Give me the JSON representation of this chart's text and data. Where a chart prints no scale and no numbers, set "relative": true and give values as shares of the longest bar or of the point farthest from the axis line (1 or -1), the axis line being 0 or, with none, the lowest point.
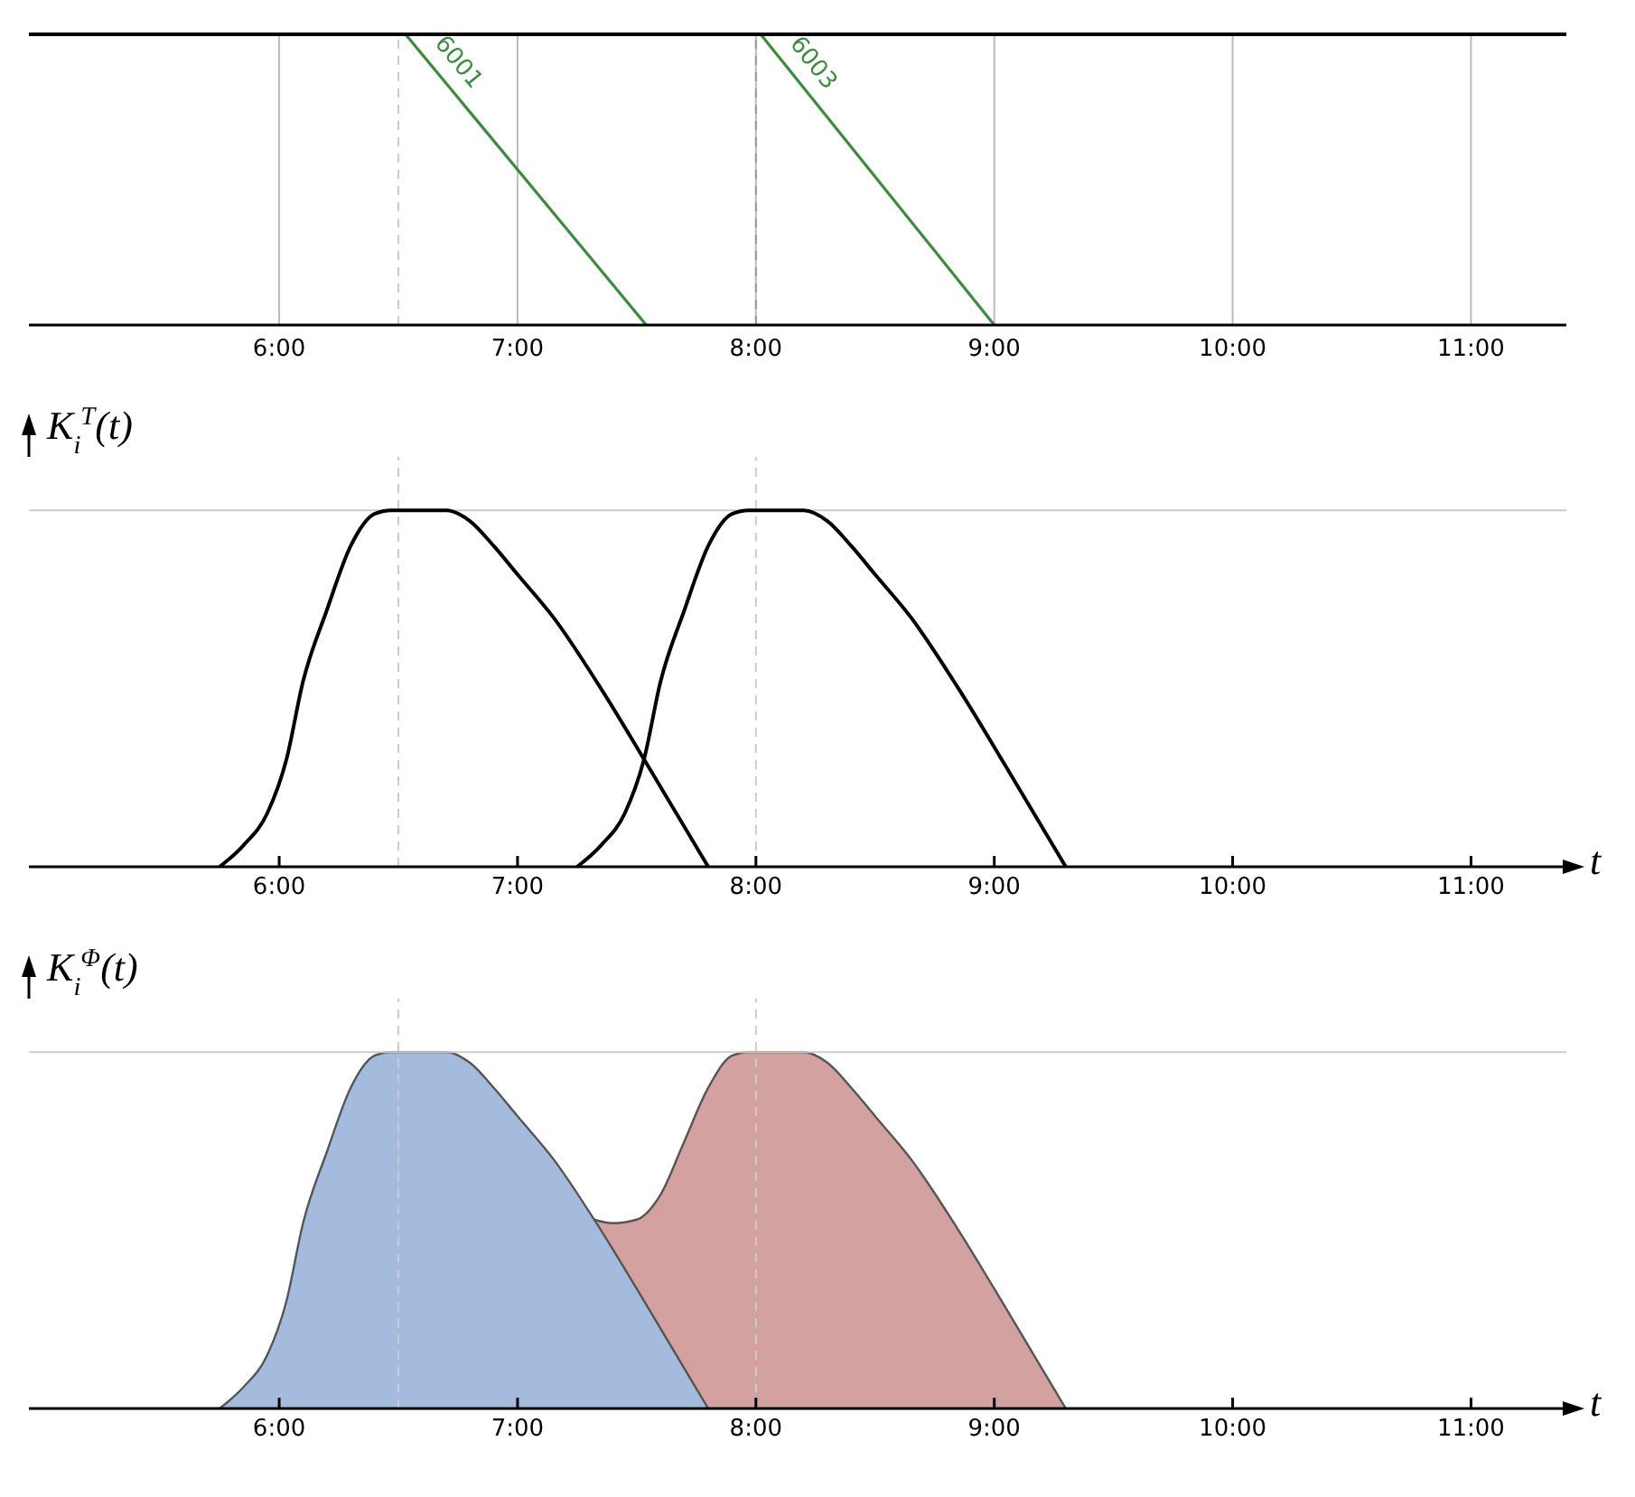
{
  "chart_data": [
    {
      "type": "line",
      "relative": true,
      "xlim": [
        4.95,
        11.4
      ],
      "xticks": [
        {
          "value": 6,
          "label": "6:00"
        },
        {
          "value": 7,
          "label": "7:00"
        },
        {
          "value": 8,
          "label": "8:00"
        },
        {
          "value": 9,
          "label": "9:00"
        },
        {
          "value": 10,
          "label": "10:00"
        },
        {
          "value": 11,
          "label": "11:00"
        }
      ],
      "grid": "x",
      "line_style": "solid",
      "marker": "none",
      "series": [
        {
          "name": "6001",
          "color": "#3d8b3d",
          "x": [
            6.53,
            7.54
          ],
          "values": [
            1,
            0
          ]
        },
        {
          "name": "6003",
          "color": "#3d8b3d",
          "x": [
            8.02,
            9.0
          ],
          "values": [
            1,
            0
          ]
        }
      ],
      "ref_lines": [
        {
          "axis": "x",
          "value": 6.5,
          "color": "#cccccc",
          "line_style": "dashed"
        },
        {
          "axis": "x",
          "value": 8,
          "color": "#999999",
          "line_style": "dashed"
        }
      ]
    },
    {
      "type": "line",
      "relative": true,
      "ylabel": "K$_{i}$$^{T}$(t)",
      "xlabel": "t",
      "xlim": [
        4.95,
        11.4
      ],
      "xticks": [
        {
          "value": 6,
          "label": "6:00"
        },
        {
          "value": 7,
          "label": "7:00"
        },
        {
          "value": 8,
          "label": "8:00"
        },
        {
          "value": 9,
          "label": "9:00"
        },
        {
          "value": 10,
          "label": "10:00"
        },
        {
          "value": 11,
          "label": "11:00"
        }
      ],
      "line_style": "solid",
      "marker": "none",
      "series": [
        {
          "color": "#000000",
          "x": [
            5.75,
            5.85,
            5.95,
            6.03,
            6.1,
            6.2,
            6.3,
            6.4,
            6.47,
            6.7,
            6.8,
            6.9,
            7.0,
            7.15,
            7.35,
            7.55,
            7.8
          ],
          "values": [
            0,
            0.06,
            0.15,
            0.3,
            0.52,
            0.72,
            0.9,
            0.99,
            1,
            1,
            0.97,
            0.9,
            0.82,
            0.7,
            0.5,
            0.28,
            0
          ]
        },
        {
          "color": "#000000",
          "x": [
            7.25,
            7.35,
            7.45,
            7.53,
            7.6,
            7.7,
            7.8,
            7.9,
            7.97,
            8.2,
            8.3,
            8.4,
            8.5,
            8.65,
            8.85,
            9.05,
            9.3
          ],
          "values": [
            0,
            0.06,
            0.15,
            0.3,
            0.52,
            0.72,
            0.9,
            0.99,
            1,
            1,
            0.97,
            0.9,
            0.82,
            0.7,
            0.5,
            0.28,
            0
          ]
        }
      ],
      "ref_lines": [
        {
          "axis": "x",
          "value": 6.5,
          "color": "#cccccc",
          "line_style": "dashed"
        },
        {
          "axis": "x",
          "value": 8,
          "color": "#cccccc",
          "line_style": "dashed"
        },
        {
          "axis": "y",
          "value": 1,
          "color": "#cccccc",
          "line_style": "solid"
        }
      ]
    },
    {
      "type": "area",
      "relative": true,
      "ylabel": "K$_{i}$$^{Φ}$(t)",
      "xlabel": "t",
      "xlim": [
        4.95,
        11.4
      ],
      "xticks": [
        {
          "value": 6,
          "label": "6:00"
        },
        {
          "value": 7,
          "label": "7:00"
        },
        {
          "value": 8,
          "label": "8:00"
        },
        {
          "value": 9,
          "label": "9:00"
        },
        {
          "value": 10,
          "label": "10:00"
        },
        {
          "value": 11,
          "label": "11:00"
        }
      ],
      "series": [
        {
          "color": "#d3a19f",
          "x": [
            7.32,
            7.4,
            7.5,
            7.6,
            7.7,
            7.8,
            7.9,
            7.97,
            8.2,
            8.3,
            8.4,
            8.5,
            8.65,
            8.85,
            9.05,
            9.3
          ],
          "values": [
            0.53,
            0.52,
            0.53,
            0.6,
            0.75,
            0.9,
            0.99,
            1,
            1,
            0.97,
            0.9,
            0.82,
            0.7,
            0.5,
            0.28,
            0
          ]
        },
        {
          "color": "#a5bbdd",
          "x": [
            5.75,
            5.85,
            5.95,
            6.03,
            6.1,
            6.2,
            6.3,
            6.4,
            6.47,
            6.7,
            6.8,
            6.9,
            7.0,
            7.15,
            7.35,
            7.55,
            7.8
          ],
          "values": [
            0,
            0.06,
            0.15,
            0.3,
            0.52,
            0.72,
            0.9,
            0.99,
            1,
            1,
            0.97,
            0.9,
            0.82,
            0.7,
            0.5,
            0.28,
            0
          ]
        }
      ],
      "ref_lines": [
        {
          "axis": "x",
          "value": 6.5,
          "color": "#cccccc",
          "line_style": "dashed"
        },
        {
          "axis": "x",
          "value": 8,
          "color": "#cccccc",
          "line_style": "dashed"
        },
        {
          "axis": "y",
          "value": 1,
          "color": "#cccccc",
          "line_style": "solid"
        }
      ]
    }
  ]
}
